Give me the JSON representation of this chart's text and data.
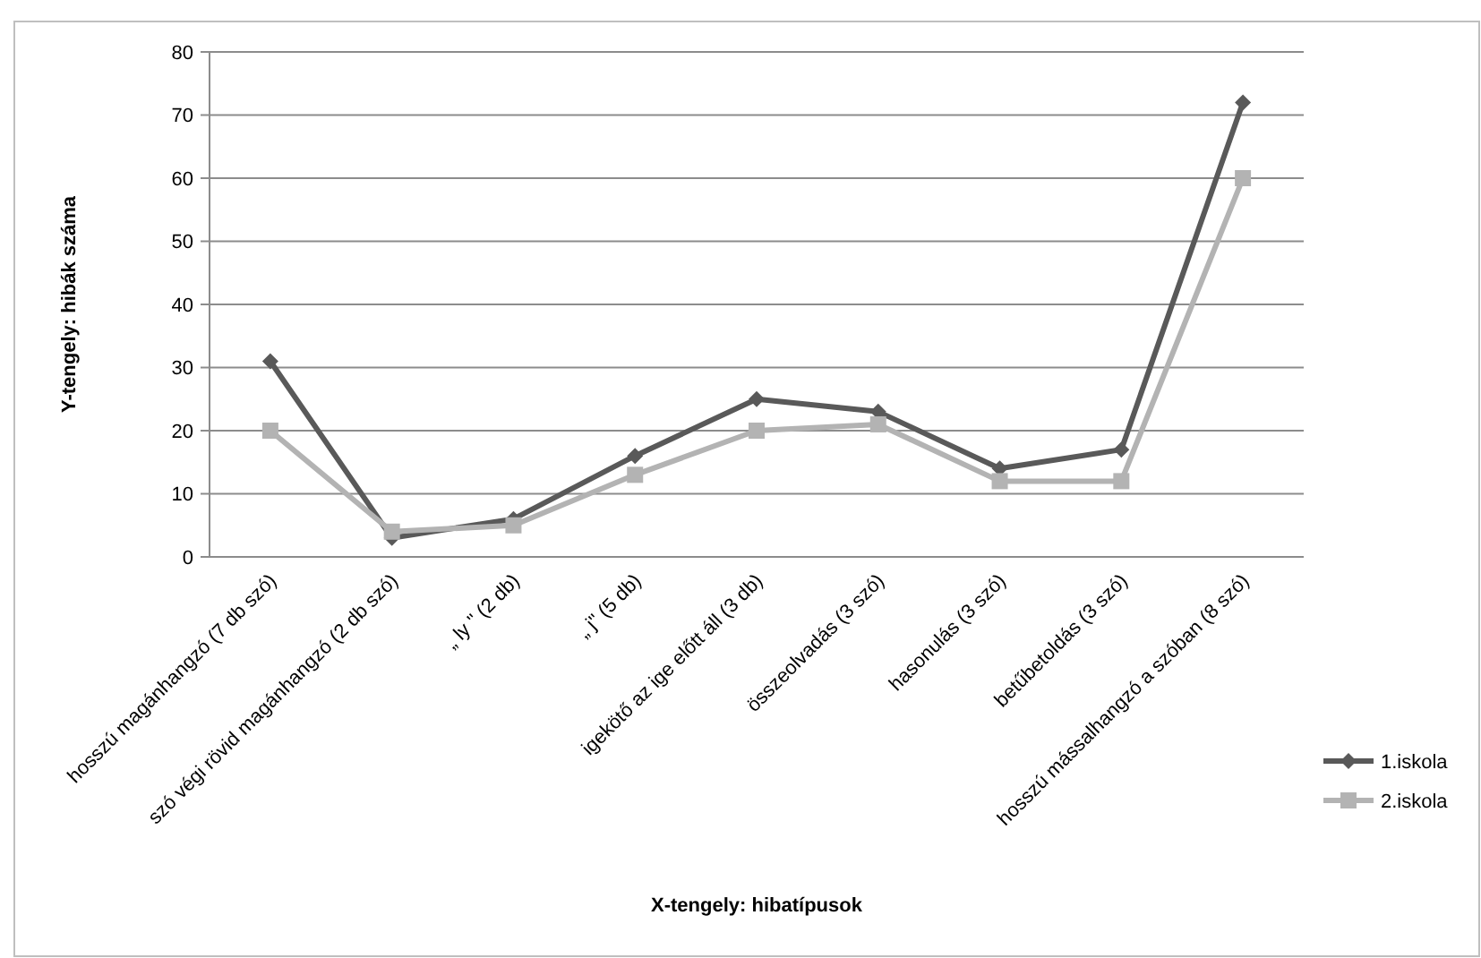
{
  "chart_data": {
    "type": "line",
    "xlabel": "X-tengely: hibatípusok",
    "ylabel": "Y-tengely: hibák száma",
    "categories": [
      "hosszú magánhangzó  (7 db szó)",
      "szó végi rövid magánhangzó  (2 db szó)",
      "„ ly \" (2 db)",
      "„ j\" (5 db)",
      "igekötő az ige előtt áll (3 db)",
      "összeolvadás (3 szó)",
      "hasonulás (3 szó)",
      "betűbetoldás (3 szó)",
      "hosszú mássalhangzó  a szóban (8 szó)"
    ],
    "series": [
      {
        "name": "1.iskola",
        "color": "#595959",
        "marker": "diamond",
        "values": [
          31,
          3,
          6,
          16,
          25,
          23,
          14,
          17,
          72
        ]
      },
      {
        "name": "2.iskola",
        "color": "#b3b3b3",
        "marker": "square",
        "values": [
          20,
          4,
          5,
          13,
          20,
          21,
          12,
          12,
          60
        ]
      }
    ],
    "ylim": [
      0,
      80
    ],
    "yticks": [
      0,
      10,
      20,
      30,
      40,
      50,
      60,
      70,
      80
    ],
    "grid": "y",
    "legend": "right"
  }
}
